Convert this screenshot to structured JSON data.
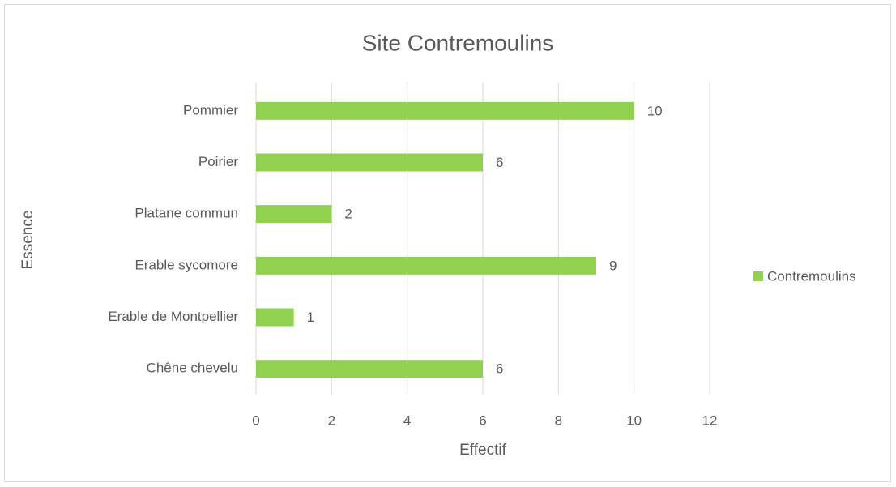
{
  "chart_data": {
    "type": "bar",
    "orientation": "horizontal",
    "title": "Site Contremoulins",
    "x_label": "Effectif",
    "y_label": "Essence",
    "categories": [
      "Chêne chevelu",
      "Erable de Montpellier",
      "Erable sycomore",
      "Platane commun",
      "Poirier",
      "Pommier"
    ],
    "series": [
      {
        "name": "Contremoulins",
        "color": "#92d050",
        "values": [
          6,
          1,
          9,
          2,
          6,
          10
        ]
      }
    ],
    "xlim": [
      0,
      12
    ],
    "xticks": [
      0,
      2,
      4,
      6,
      8,
      10,
      12
    ],
    "grid": true,
    "legend": "right"
  }
}
